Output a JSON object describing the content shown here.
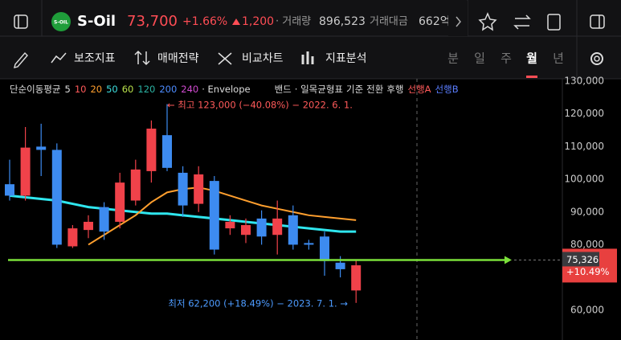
{
  "header": {
    "logo": "S-OIL",
    "name": "S-Oil",
    "price": "73,700",
    "change_pct": "+1.66%",
    "change": "1,200",
    "volume_label": "· 거래량",
    "volume": "896,523",
    "amount_label": "거래대금",
    "amount": "662억"
  },
  "toolbar": {
    "tools": [
      "보조지표",
      "매매전략",
      "비교차트",
      "지표분석"
    ],
    "periods": [
      "분",
      "일",
      "주",
      "월",
      "년"
    ],
    "active_period": 3
  },
  "chart_data": {
    "type": "candlestick",
    "legend": {
      "title": "단순이동평균",
      "items": [
        {
          "name": "5",
          "color": "#dddddd"
        },
        {
          "name": "10",
          "color": "#ff5a5a"
        },
        {
          "name": "20",
          "color": "#ff9f2e"
        },
        {
          "name": "50",
          "color": "#3ee0e0"
        },
        {
          "name": "60",
          "color": "#b9e14b"
        },
        {
          "name": "120",
          "color": "#2bb3a3"
        },
        {
          "name": "200",
          "color": "#4d8cff"
        },
        {
          "name": "240",
          "color": "#d14bd1"
        }
      ],
      "others": [
        "· Envelope",
        "밴드",
        "· 일목균형표",
        "기준",
        "전환",
        "후행"
      ],
      "lead_a": "선행A",
      "lead_b": "선행B"
    },
    "open": [
      98500,
      95000,
      110000,
      109000,
      79500,
      84500,
      91500,
      87000,
      93500,
      102500,
      113500,
      102000,
      92500,
      99500,
      85000,
      83000,
      88000,
      83000,
      89000,
      80500,
      82500,
      74500,
      66000
    ],
    "high": [
      106000,
      116000,
      117000,
      111000,
      86000,
      89000,
      93000,
      102000,
      106000,
      118000,
      123000,
      104000,
      104000,
      101000,
      89000,
      88000,
      90500,
      93500,
      92000,
      81500,
      84000,
      76500,
      75500
    ],
    "low": [
      93500,
      93500,
      101000,
      79000,
      79000,
      82000,
      81500,
      85000,
      92000,
      99000,
      102500,
      88500,
      90000,
      77000,
      83000,
      80500,
      80000,
      77000,
      78500,
      78500,
      70500,
      70000,
      62200
    ],
    "close": [
      95000,
      109700,
      109000,
      80000,
      85000,
      87000,
      84000,
      99000,
      103000,
      115500,
      103500,
      92000,
      101500,
      78500,
      87000,
      86000,
      82500,
      88000,
      80000,
      80000,
      75000,
      72500,
      73700
    ],
    "up_color": "#f0424a",
    "down_color": "#3d8bf0",
    "series": [
      {
        "name": "60",
        "color": "#2fe6ee",
        "values": [
          95000,
          94500,
          94000,
          93500,
          92500,
          91500,
          91000,
          90500,
          90000,
          89500,
          89500,
          89000,
          88500,
          88000,
          87500,
          87000,
          86500,
          86000,
          85500,
          85000,
          84500,
          84000,
          84000
        ]
      },
      {
        "name": "20",
        "color": "#ff9f2e",
        "values": [
          null,
          null,
          null,
          null,
          null,
          80000,
          83000,
          86000,
          89000,
          93000,
          96000,
          97000,
          97500,
          96500,
          95000,
          93500,
          92000,
          91000,
          90000,
          89000,
          88500,
          88000,
          87500
        ]
      }
    ],
    "ylim": [
      50850,
      130750
    ],
    "yticks": [
      {
        "value": 60000,
        "label": "60,000"
      },
      {
        "value": 70000,
        "label": "70,000"
      },
      {
        "value": 80000,
        "label": "80,000"
      },
      {
        "value": 90000,
        "label": "90,000"
      },
      {
        "value": 100000,
        "label": "100,000"
      },
      {
        "value": 110000,
        "label": "110,000"
      },
      {
        "value": 120000,
        "label": "120,000"
      },
      {
        "value": 130000,
        "label": "130,000"
      }
    ],
    "price_line": {
      "value": 75326,
      "label": "75,326",
      "change": "+10.49%",
      "color": "#7be03a"
    },
    "annotations": {
      "high": "← 최고 123,000 (−40.08%) − 2022. 6. 1.",
      "low": "최저 62,200 (+18.49%) − 2023. 7. 1. →"
    }
  }
}
